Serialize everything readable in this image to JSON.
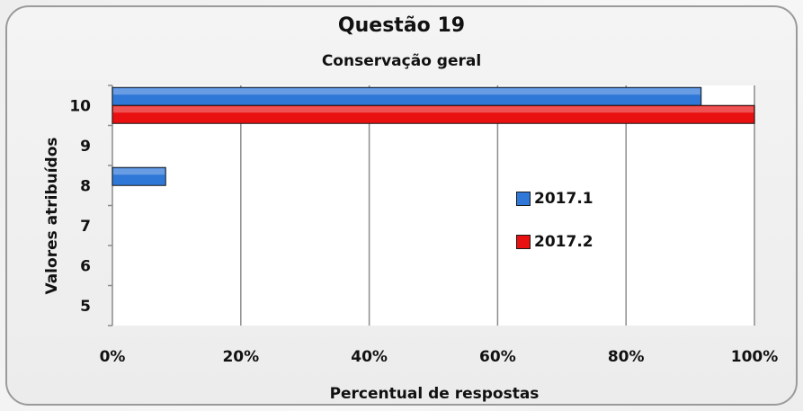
{
  "chart_data": {
    "type": "bar",
    "orientation": "horizontal",
    "title": "Questão 19",
    "subtitle": "Conservação geral",
    "xlabel": "Percentual de respostas",
    "ylabel": "Valores atribuídos",
    "categories": [
      "5",
      "6",
      "7",
      "8",
      "9",
      "10"
    ],
    "x_ticks": [
      "0%",
      "20%",
      "40%",
      "60%",
      "80%",
      "100%"
    ],
    "xlim": [
      0,
      100
    ],
    "grid": "vertical",
    "legend_position": "right",
    "series": [
      {
        "name": "2017.1",
        "color": "#2f78d8",
        "values": [
          0,
          0,
          0,
          8.3,
          0,
          91.7
        ]
      },
      {
        "name": "2017.2",
        "color": "#e81010",
        "values": [
          0,
          0,
          0,
          0,
          0,
          100
        ]
      }
    ]
  }
}
